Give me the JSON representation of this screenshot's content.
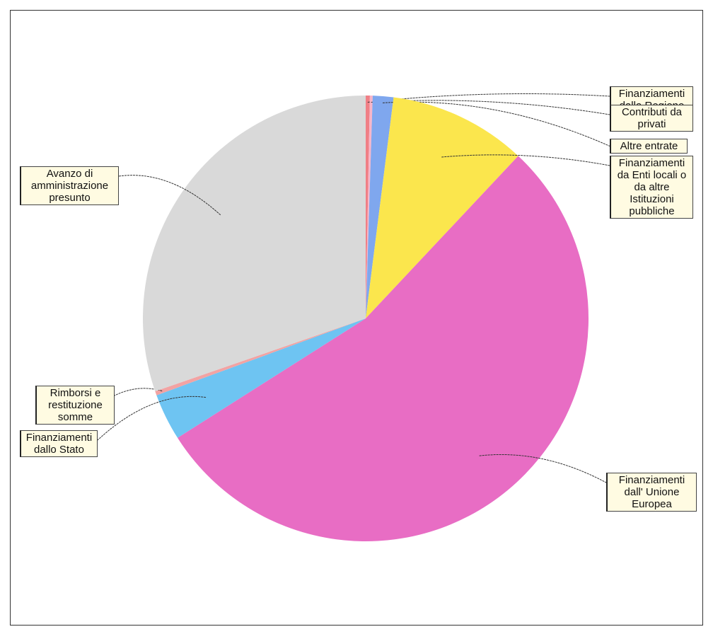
{
  "chart_data": {
    "type": "pie",
    "categories": [
      "Finanziamenti dalla Regione",
      "Contributi da privati",
      "Altre entrate",
      "Finanziamenti da Enti locali o da altre Istituzioni pubbliche",
      "Finanziamenti dall' Unione Europea",
      "Finanziamenti dallo Stato",
      "Rimborsi e restituzione somme",
      "Avanzo di amministrazione presunto"
    ],
    "values": [
      0.3,
      0.2,
      1.5,
      10,
      54,
      3.4,
      0.3,
      30.3
    ],
    "colors": [
      "#f07f86",
      "#f7b5c8",
      "#7fa7ee",
      "#fbe64d",
      "#e86dc4",
      "#6ec4f2",
      "#f2a3a3",
      "#d9d9d9"
    ]
  }
}
